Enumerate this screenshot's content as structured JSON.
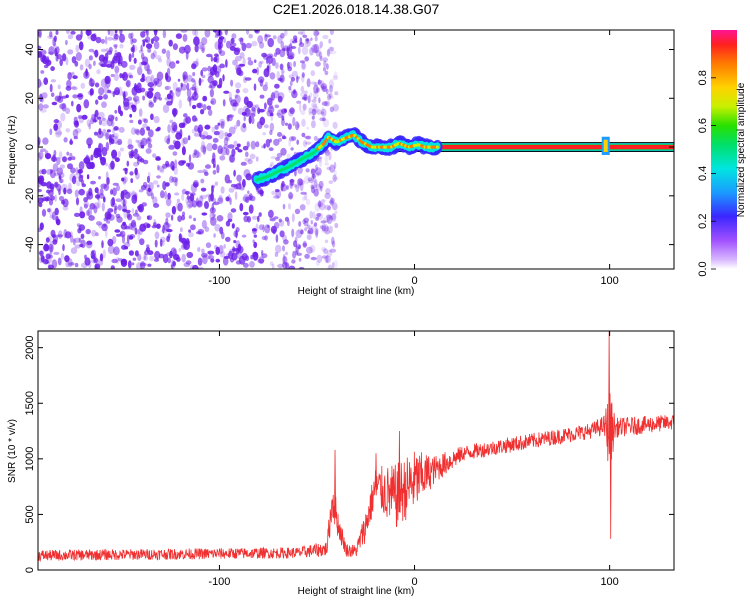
{
  "title": "C2E1.2026.018.14.38.G07",
  "chart_data": [
    {
      "type": "heatmap",
      "xlabel": "Height of straight line (km)",
      "ylabel": "Frequency (Hz)",
      "xlim": [
        -193,
        133
      ],
      "ylim": [
        -50,
        48
      ],
      "xticks": [
        -100,
        0,
        100
      ],
      "yticks": [
        -40,
        -20,
        0,
        20,
        40
      ],
      "colorbar": {
        "label": "Normalized spectral amplitude",
        "range": [
          0,
          1
        ],
        "ticks": [
          0.0,
          0.2,
          0.4,
          0.6,
          0.8
        ],
        "tick_labels": [
          "0.0",
          "0.2",
          "0.4",
          "0.6",
          "0.8"
        ]
      },
      "noise_region": {
        "x_from": -193,
        "x_to": -40,
        "color": "#6a1be8"
      },
      "ridge": [
        {
          "x": -81,
          "f": -13.5
        },
        {
          "x": -75,
          "f": -12
        },
        {
          "x": -70,
          "f": -10
        },
        {
          "x": -64,
          "f": -8
        },
        {
          "x": -58,
          "f": -5
        },
        {
          "x": -52,
          "f": -2.5
        },
        {
          "x": -47,
          "f": 1
        },
        {
          "x": -44,
          "f": 4
        },
        {
          "x": -40,
          "f": 2
        },
        {
          "x": -36,
          "f": 3.5
        },
        {
          "x": -31,
          "f": 5
        },
        {
          "x": -27,
          "f": 2
        },
        {
          "x": -22,
          "f": 0
        },
        {
          "x": -12,
          "f": 0
        },
        {
          "x": -8,
          "f": 1.5
        },
        {
          "x": -3,
          "f": 0
        },
        {
          "x": 2,
          "f": 1
        },
        {
          "x": 5,
          "f": 0
        },
        {
          "x": 12,
          "f": 0
        }
      ],
      "tone": {
        "x_from": -26,
        "x_to": 133,
        "f": 0
      },
      "spike": {
        "x": 98,
        "f_from": -2,
        "f_to": 3
      }
    },
    {
      "type": "line",
      "xlabel": "Height of straight line (km)",
      "ylabel": "SNR (10 * v/v)",
      "xlim": [
        -193,
        133
      ],
      "ylim": [
        0,
        2150
      ],
      "xticks": [
        -100,
        0,
        100
      ],
      "yticks": [
        0,
        500,
        1000,
        1500,
        2000
      ],
      "color": "#f03030",
      "envelope": [
        {
          "x": -193,
          "mean": 130,
          "noise": 50
        },
        {
          "x": -60,
          "mean": 155,
          "noise": 50
        },
        {
          "x": -45,
          "mean": 190,
          "noise": 70
        },
        {
          "x": -42,
          "mean": 650,
          "noise": 200
        },
        {
          "x": -39,
          "mean": 400,
          "noise": 120
        },
        {
          "x": -35,
          "mean": 180,
          "noise": 60
        },
        {
          "x": -30,
          "mean": 170,
          "noise": 60
        },
        {
          "x": -25,
          "mean": 400,
          "noise": 150
        },
        {
          "x": -20,
          "mean": 750,
          "noise": 180
        },
        {
          "x": -10,
          "mean": 650,
          "noise": 300
        },
        {
          "x": 0,
          "mean": 800,
          "noise": 280
        },
        {
          "x": 10,
          "mean": 900,
          "noise": 130
        },
        {
          "x": 25,
          "mean": 1050,
          "noise": 70
        },
        {
          "x": 50,
          "mean": 1130,
          "noise": 70
        },
        {
          "x": 90,
          "mean": 1250,
          "noise": 70
        },
        {
          "x": 97,
          "mean": 1300,
          "noise": 90
        },
        {
          "x": 100,
          "mean": 1250,
          "noise": 380
        },
        {
          "x": 103,
          "mean": 1280,
          "noise": 90
        },
        {
          "x": 133,
          "mean": 1330,
          "noise": 70
        }
      ],
      "peaks": [
        {
          "x": -41,
          "y": 1080
        },
        {
          "x": -20,
          "y": 1050
        },
        {
          "x": -8,
          "y": 1250
        },
        {
          "x": 99.5,
          "y": 2150
        },
        {
          "x": 100.3,
          "y": 280
        }
      ]
    }
  ]
}
